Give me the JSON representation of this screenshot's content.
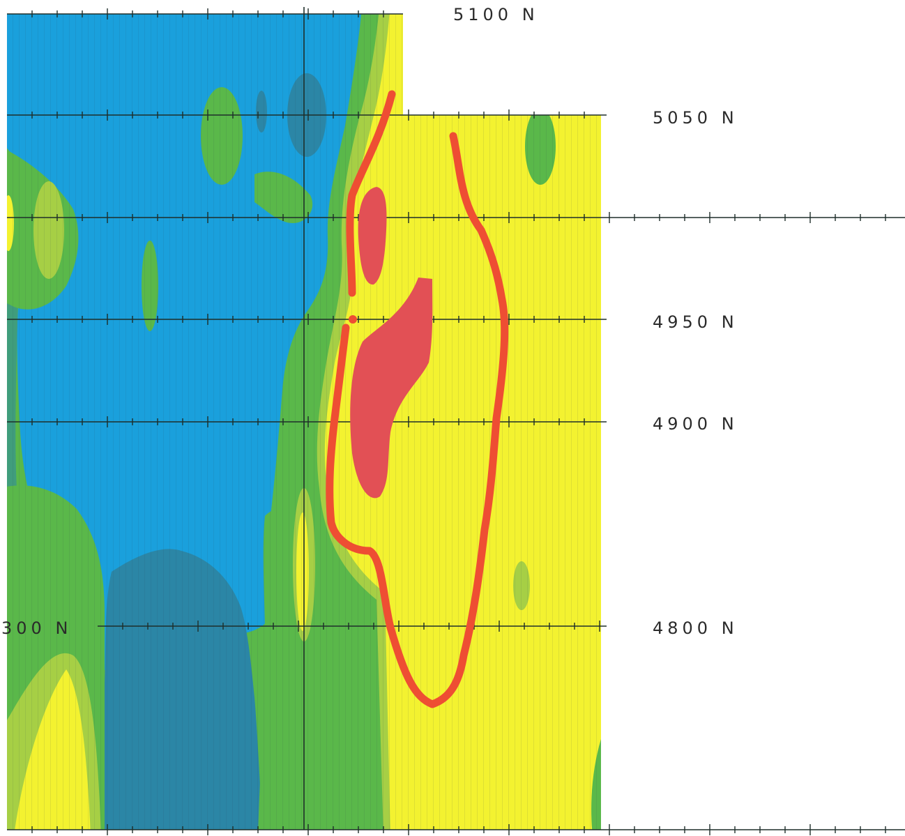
{
  "map": {
    "grid_labels": [
      {
        "id": "5100",
        "text": "5100 N"
      },
      {
        "id": "5050",
        "text": "5050 N"
      },
      {
        "id": "4950",
        "text": "4950 N"
      },
      {
        "id": "4900",
        "text": "4900 N"
      },
      {
        "id": "4800",
        "text": "4800 N"
      },
      {
        "id": "4800-left",
        "text": "300 N"
      }
    ],
    "colors": {
      "low": "#1aa0dc",
      "very_low": "#2b86a6",
      "mid": "#5ab84a",
      "mid_high": "#a6cf45",
      "high": "#f3f230",
      "anomaly_outline": "#ee4e33",
      "anomaly_fill": "#e25055"
    }
  }
}
